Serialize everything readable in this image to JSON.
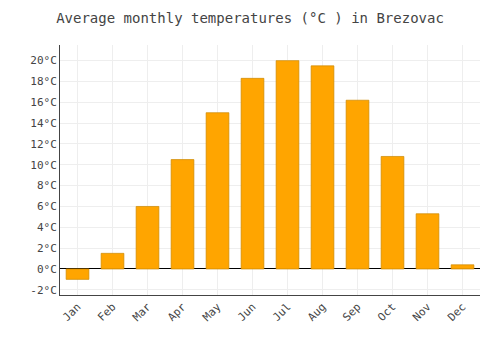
{
  "chart_data": {
    "type": "bar",
    "title": "Average monthly temperatures (°C ) in Brezovac",
    "categories": [
      "Jan",
      "Feb",
      "Mar",
      "Apr",
      "May",
      "Jun",
      "Jul",
      "Aug",
      "Sep",
      "Oct",
      "Nov",
      "Dec"
    ],
    "values": [
      -1.0,
      1.5,
      6.0,
      10.5,
      15.0,
      18.3,
      20.0,
      19.5,
      16.2,
      10.8,
      5.3,
      0.4
    ],
    "color": "#FFA500",
    "ylim": [
      -2.5,
      21.5
    ],
    "yticks": [
      {
        "value": -2,
        "label": "-2°C"
      },
      {
        "value": 0,
        "label": "0°C"
      },
      {
        "value": 2,
        "label": "2°C"
      },
      {
        "value": 4,
        "label": "4°C"
      },
      {
        "value": 6,
        "label": "6°C"
      },
      {
        "value": 8,
        "label": "8°C"
      },
      {
        "value": 10,
        "label": "10°C"
      },
      {
        "value": 12,
        "label": "12°C"
      },
      {
        "value": 14,
        "label": "14°C"
      },
      {
        "value": 16,
        "label": "16°C"
      },
      {
        "value": 18,
        "label": "18°C"
      },
      {
        "value": 20,
        "label": "20°C"
      }
    ],
    "grid": true
  }
}
